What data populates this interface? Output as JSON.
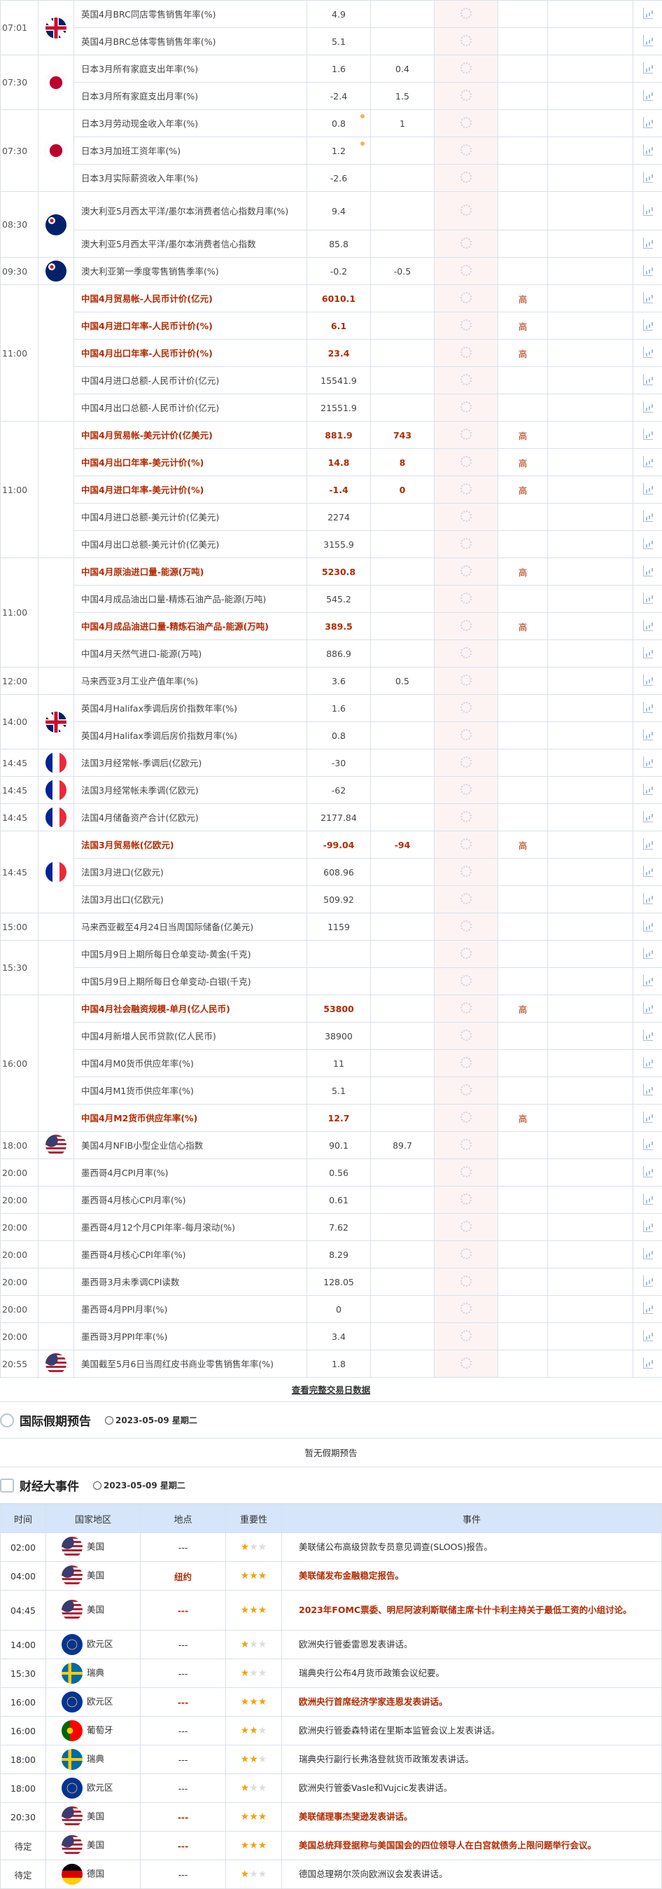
{
  "calendar": [
    {
      "time": "07:01",
      "flag": "uk",
      "rows": [
        {
          "name": "英国4月BRC同店零售销售年率(%)",
          "actual": "4.9"
        },
        {
          "name": "英国4月BRC总体零售销售年率(%)",
          "actual": "5.1"
        }
      ]
    },
    {
      "time": "07:30",
      "flag": "jp",
      "rows": [
        {
          "name": "日本3月所有家庭支出年率(%)",
          "actual": "1.6",
          "forecast": "0.4"
        },
        {
          "name": "日本3月所有家庭支出月率(%)",
          "actual": "-2.4",
          "forecast": "1.5"
        }
      ]
    },
    {
      "time": "07:30",
      "flag": "jp",
      "rows": [
        {
          "name": "日本3月劳动现金收入年率(%)",
          "actual": "0.8",
          "forecast": "1",
          "dot": true
        },
        {
          "name": "日本3月加班工资年率(%)",
          "actual": "1.2",
          "dot": true
        },
        {
          "name": "日本3月实际薪资收入年率(%)",
          "actual": "-2.6"
        }
      ]
    },
    {
      "time": "08:30",
      "flag": "au",
      "rows": [
        {
          "name": "澳大利亚5月西太平洋/墨尔本消费者信心指数月率(%)",
          "actual": "9.4",
          "tall": true
        },
        {
          "name": "澳大利亚5月西太平洋/墨尔本消费者信心指数",
          "actual": "85.8"
        }
      ]
    },
    {
      "time": "09:30",
      "flag": "au",
      "rows": [
        {
          "name": "澳大利亚第一季度零售销售季率(%)",
          "actual": "-0.2",
          "forecast": "-0.5"
        }
      ]
    },
    {
      "time": "11:00",
      "flag": "",
      "rows": [
        {
          "name": "中国4月贸易帐-人民币计价(亿元)",
          "actual": "6010.1",
          "imp": "高"
        },
        {
          "name": "中国4月进口年率-人民币计价(%)",
          "actual": "6.1",
          "imp": "高"
        },
        {
          "name": "中国4月出口年率-人民币计价(%)",
          "actual": "23.4",
          "imp": "高"
        },
        {
          "name": "中国4月进口总额-人民币计价(亿元)",
          "actual": "15541.9"
        },
        {
          "name": "中国4月出口总额-人民币计价(亿元)",
          "actual": "21551.9"
        }
      ]
    },
    {
      "time": "11:00",
      "flag": "",
      "rows": [
        {
          "name": "中国4月贸易帐-美元计价(亿美元)",
          "actual": "881.9",
          "forecast": "743",
          "imp": "高"
        },
        {
          "name": "中国4月出口年率-美元计价(%)",
          "actual": "14.8",
          "forecast": "8",
          "imp": "高"
        },
        {
          "name": "中国4月进口年率-美元计价(%)",
          "actual": "-1.4",
          "forecast": "0",
          "imp": "高"
        },
        {
          "name": "中国4月进口总额-美元计价(亿美元)",
          "actual": "2274"
        },
        {
          "name": "中国4月出口总额-美元计价(亿美元)",
          "actual": "3155.9"
        }
      ]
    },
    {
      "time": "11:00",
      "flag": "",
      "rows": [
        {
          "name": "中国4月原油进口量-能源(万吨)",
          "actual": "5230.8",
          "imp": "高"
        },
        {
          "name": "中国4月成品油出口量-精炼石油产品-能源(万吨)",
          "actual": "545.2"
        },
        {
          "name": "中国4月成品油进口量-精炼石油产品-能源(万吨)",
          "actual": "389.5",
          "imp": "高"
        },
        {
          "name": "中国4月天然气进口-能源(万吨)",
          "actual": "886.9"
        }
      ]
    },
    {
      "time": "12:00",
      "flag": "",
      "rows": [
        {
          "name": "马来西亚3月工业产值年率(%)",
          "actual": "3.6",
          "forecast": "0.5"
        }
      ]
    },
    {
      "time": "14:00",
      "flag": "uk",
      "rows": [
        {
          "name": "英国4月Halifax季调后房价指数年率(%)",
          "actual": "1.6"
        },
        {
          "name": "英国4月Halifax季调后房价指数月率(%)",
          "actual": "0.8"
        }
      ]
    },
    {
      "time": "14:45",
      "flag": "fr",
      "rows": [
        {
          "name": "法国3月经常帐-季调后(亿欧元)",
          "actual": "-30"
        }
      ]
    },
    {
      "time": "14:45",
      "flag": "fr",
      "rows": [
        {
          "name": "法国3月经常帐未季调(亿欧元)",
          "actual": "-62"
        }
      ]
    },
    {
      "time": "14:45",
      "flag": "fr",
      "rows": [
        {
          "name": "法国4月储备资产合计(亿欧元)",
          "actual": "2177.84"
        }
      ]
    },
    {
      "time": "14:45",
      "flag": "fr",
      "rows": [
        {
          "name": "法国3月贸易帐(亿欧元)",
          "actual": "-99.04",
          "forecast": "-94",
          "imp": "高"
        },
        {
          "name": "法国3月进口(亿欧元)",
          "actual": "608.96"
        },
        {
          "name": "法国3月出口(亿欧元)",
          "actual": "509.92"
        }
      ]
    },
    {
      "time": "15:00",
      "flag": "",
      "rows": [
        {
          "name": "马来西亚截至4月24日当周国际储备(亿美元)",
          "actual": "1159"
        }
      ]
    },
    {
      "time": "15:30",
      "flag": "",
      "rows": [
        {
          "name": "中国5月9日上期所每日仓单变动-黄金(千克)"
        },
        {
          "name": "中国5月9日上期所每日仓单变动-白银(千克)"
        }
      ]
    },
    {
      "time": "16:00",
      "flag": "",
      "rows": [
        {
          "name": "中国4月社会融资规模-单月(亿人民币)",
          "actual": "53800",
          "imp": "高"
        },
        {
          "name": "中国4月新增人民币贷款(亿人民币)",
          "actual": "38900"
        },
        {
          "name": "中国4月M0货币供应年率(%)",
          "actual": "11"
        },
        {
          "name": "中国4月M1货币供应年率(%)",
          "actual": "5.1"
        },
        {
          "name": "中国4月M2货币供应年率(%)",
          "actual": "12.7",
          "imp": "高"
        }
      ]
    },
    {
      "time": "18:00",
      "flag": "us",
      "rows": [
        {
          "name": "美国4月NFIB小型企业信心指数",
          "actual": "90.1",
          "forecast": "89.7"
        }
      ]
    },
    {
      "time": "20:00",
      "flag": "",
      "rows": [
        {
          "name": "墨西哥4月CPI月率(%)",
          "actual": "0.56"
        }
      ]
    },
    {
      "time": "20:00",
      "flag": "",
      "rows": [
        {
          "name": "墨西哥4月核心CPI月率(%)",
          "actual": "0.61"
        }
      ]
    },
    {
      "time": "20:00",
      "flag": "",
      "rows": [
        {
          "name": "墨西哥4月12个月CPI年率-每月滚动(%)",
          "actual": "7.62"
        }
      ]
    },
    {
      "time": "20:00",
      "flag": "",
      "rows": [
        {
          "name": "墨西哥4月核心CPI年率(%)",
          "actual": "8.29"
        }
      ]
    },
    {
      "time": "20:00",
      "flag": "",
      "rows": [
        {
          "name": "墨西哥3月未季调CPI读数",
          "actual": "128.05"
        }
      ]
    },
    {
      "time": "20:00",
      "flag": "",
      "rows": [
        {
          "name": "墨西哥4月PPI月率(%)",
          "actual": "0"
        }
      ]
    },
    {
      "time": "20:00",
      "flag": "",
      "rows": [
        {
          "name": "墨西哥3月PPI年率(%)",
          "actual": "3.4"
        }
      ]
    },
    {
      "time": "20:55",
      "flag": "us",
      "rows": [
        {
          "name": "美国截至5月6日当周红皮书商业零售销售年率(%)",
          "actual": "1.8"
        }
      ]
    }
  ],
  "more_link": "查看完整交易日数据",
  "holiday": {
    "title": "国际假期预告",
    "date": "2023-05-09 星期二",
    "empty": "暂无假期预告"
  },
  "events": {
    "title": "财经大事件",
    "date": "2023-05-09 星期二",
    "headers": [
      "时间",
      "国家地区",
      "地点",
      "重要性",
      "事件"
    ],
    "rows": [
      {
        "time": "02:00",
        "flag": "us",
        "country": "美国",
        "loc": "---",
        "stars": 1,
        "event": "美联储公布高级贷款专员意见调查(SLOOS)报告。"
      },
      {
        "time": "04:00",
        "flag": "us",
        "country": "美国",
        "loc": "纽约",
        "stars": 3,
        "event": "美联储发布金融稳定报告。"
      },
      {
        "time": "04:45",
        "flag": "us",
        "country": "美国",
        "loc": "---",
        "stars": 3,
        "event": "2023年FOMC票委、明尼阿波利斯联储主席卡什卡利主持关于最低工资的小组讨论。"
      },
      {
        "time": "14:00",
        "flag": "eu",
        "country": "欧元区",
        "loc": "---",
        "stars": 1,
        "event": "欧洲央行管委雷恩发表讲话。"
      },
      {
        "time": "15:30",
        "flag": "se",
        "country": "瑞典",
        "loc": "---",
        "stars": 1,
        "event": "瑞典央行公布4月货币政策会议纪要。"
      },
      {
        "time": "16:00",
        "flag": "eu",
        "country": "欧元区",
        "loc": "---",
        "stars": 3,
        "event": "欧洲央行首席经济学家连恩发表讲话。"
      },
      {
        "time": "16:00",
        "flag": "pt",
        "country": "葡萄牙",
        "loc": "---",
        "stars": 2,
        "event": "欧洲央行管委森特诺在里斯本监管会议上发表讲话。"
      },
      {
        "time": "18:00",
        "flag": "se",
        "country": "瑞典",
        "loc": "---",
        "stars": 2,
        "event": "瑞典央行副行长弗洛登就货币政策发表讲话。"
      },
      {
        "time": "18:00",
        "flag": "eu",
        "country": "欧元区",
        "loc": "---",
        "stars": 1,
        "event": "欧洲央行管委Vasle和Vujcic发表讲话。"
      },
      {
        "time": "20:30",
        "flag": "us",
        "country": "美国",
        "loc": "---",
        "stars": 3,
        "event": "美联储理事杰斐逊发表讲话。"
      },
      {
        "time": "待定",
        "flag": "us",
        "country": "美国",
        "loc": "---",
        "stars": 3,
        "event": "美国总统拜登据称与美国国会的四位领导人在白宫就债务上限问题举行会议。"
      },
      {
        "time": "待定",
        "flag": "de",
        "country": "德国",
        "loc": "---",
        "stars": 1,
        "event": "德国总理朔尔茨向欧洲议会发表讲话。"
      }
    ]
  },
  "colors": {
    "highlight": "#b22a00",
    "header_bg": "#d6e5fa",
    "previous_col_bg": "#fdf3f3",
    "star": "#f2a20c"
  }
}
